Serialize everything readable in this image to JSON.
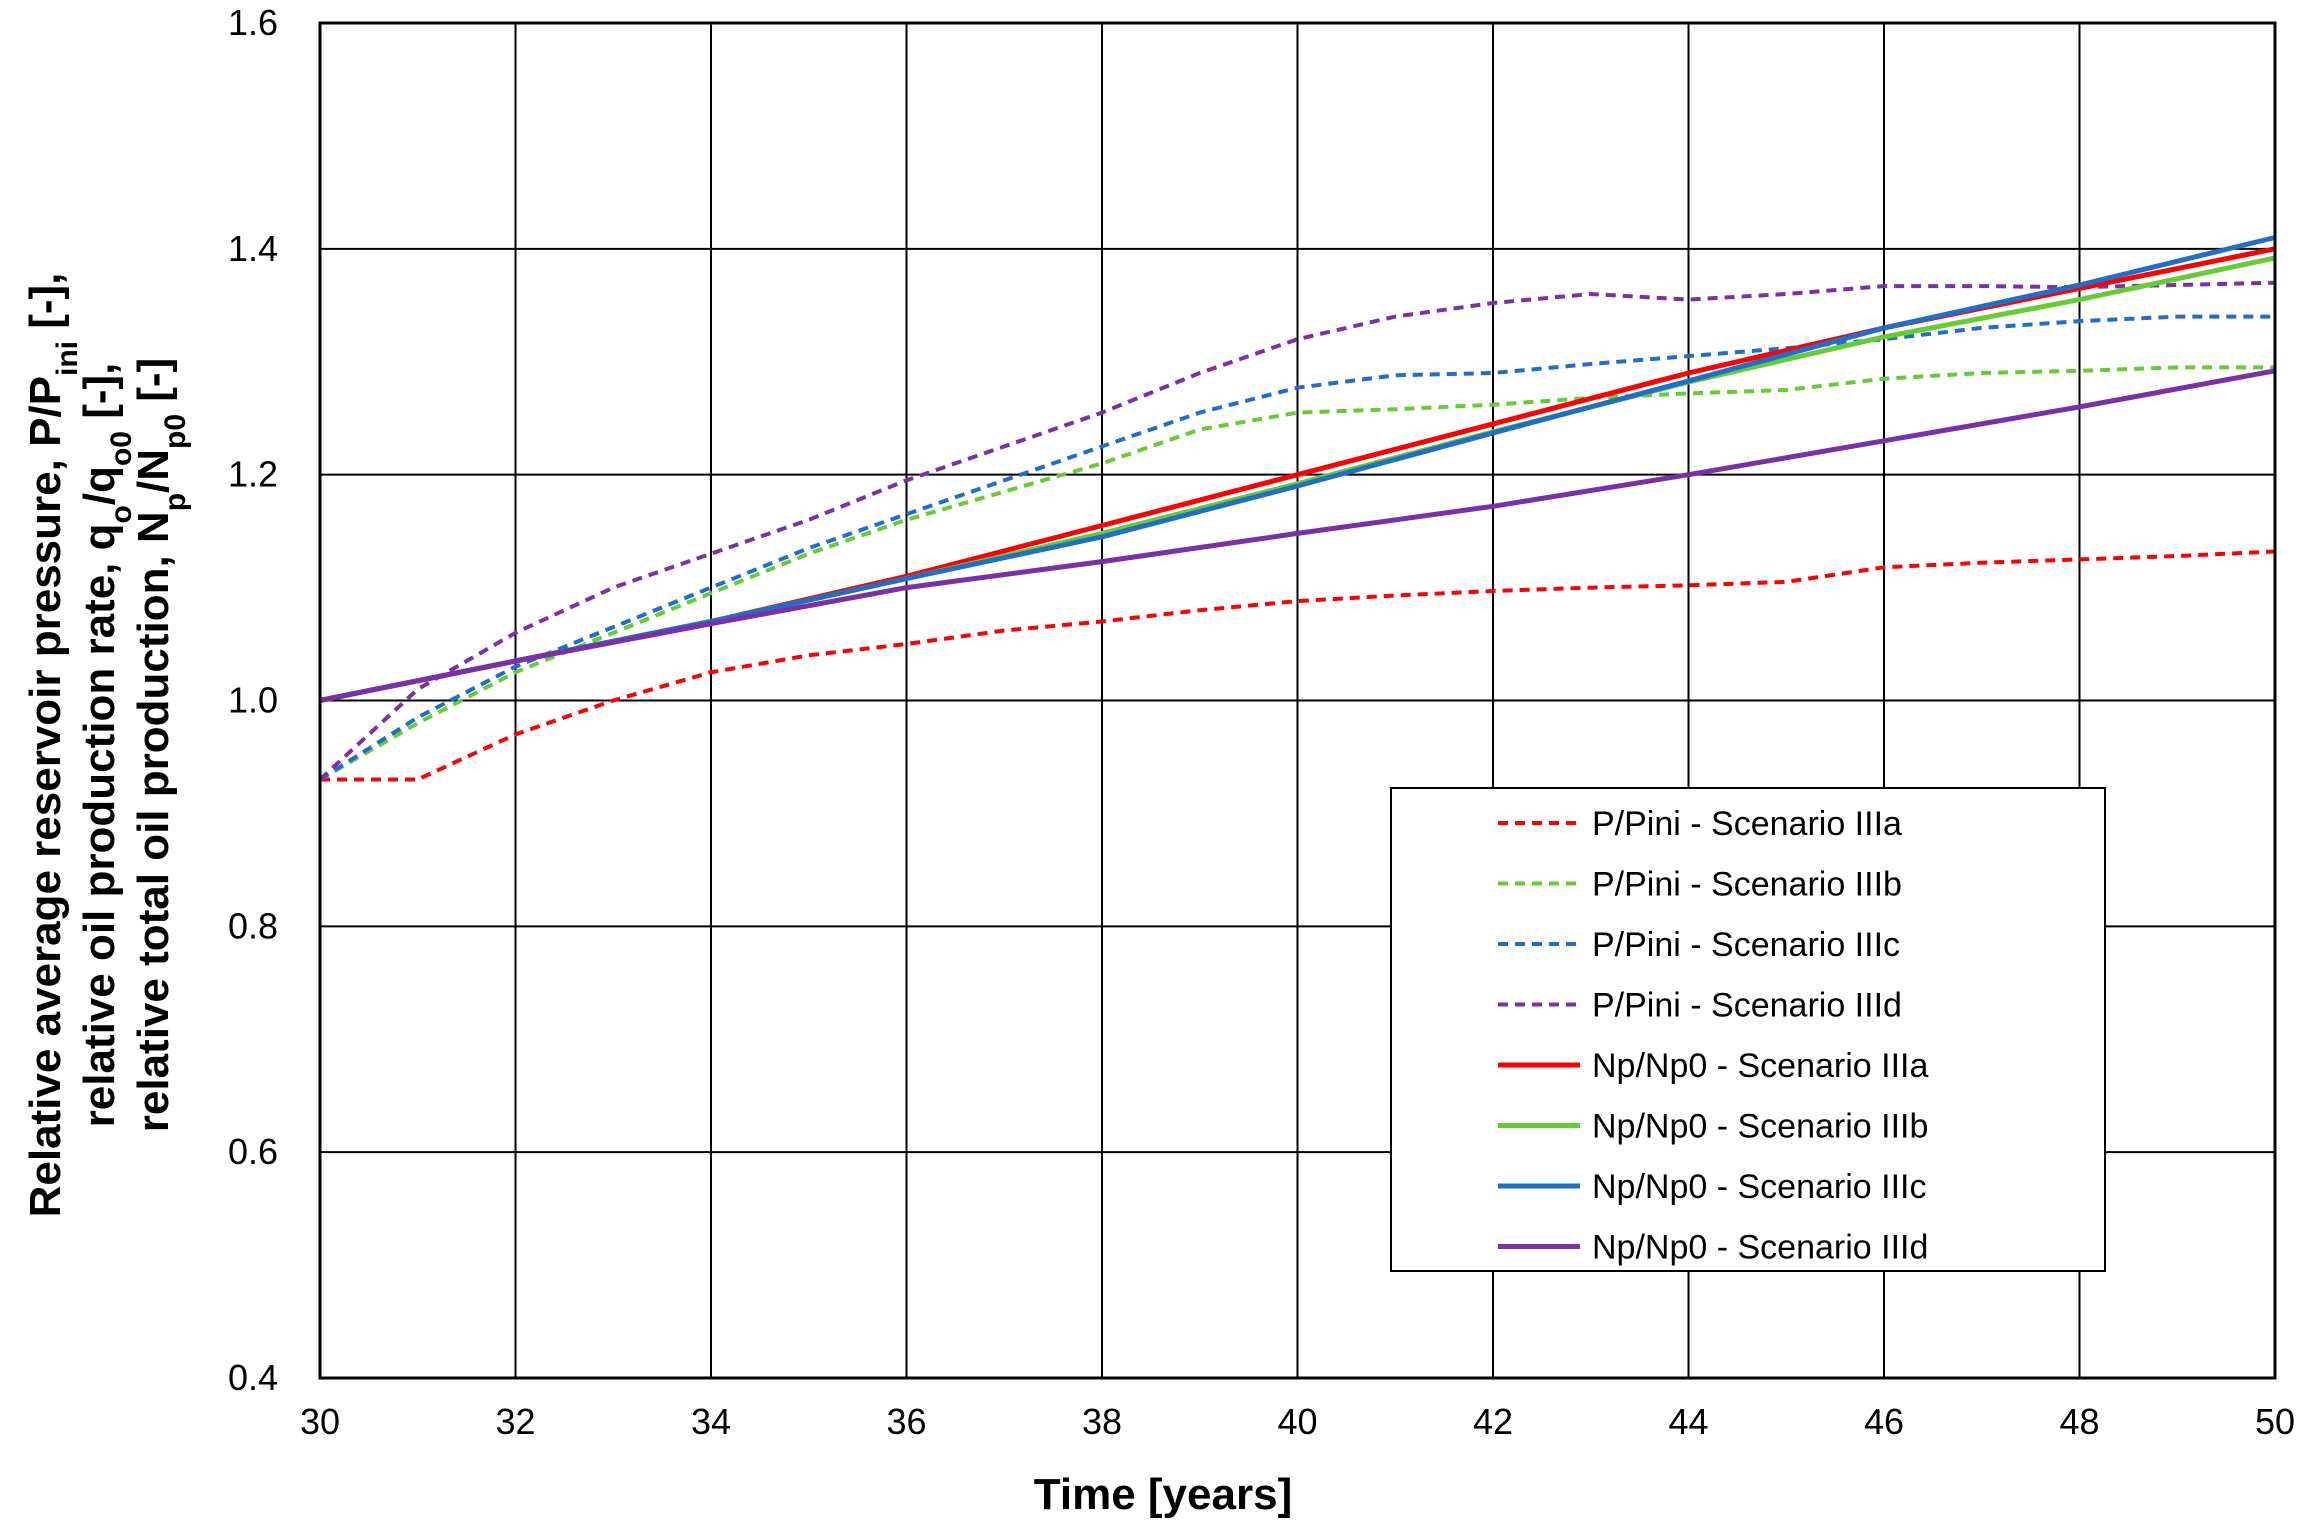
{
  "chart_data": {
    "type": "line",
    "title": "",
    "xlabel": "Time  [years]",
    "ylabel_lines": [
      "Relative average reservoir pressure, P/P_ini [-],",
      "relative oil production rate, q_o/q_o0 [-],",
      "relative total oil production, N_p/N_p0 [-]"
    ],
    "ylabel_parts": {
      "l1a": "Relative average reservoir pressure, P/P",
      "l1s": "ini",
      "l1b": " [-],",
      "l2a": "relative oil production rate, q",
      "l2s1": "o",
      "l2b": "/q",
      "l2s2": "o0",
      "l2c": " [-],",
      "l3a": "relative total oil production, N",
      "l3s1": "p",
      "l3b": "/N",
      "l3s2": "p0",
      "l3c": " [-]"
    },
    "xlim": [
      30,
      50
    ],
    "ylim": [
      0.4,
      1.6
    ],
    "x_ticks": [
      30,
      32,
      34,
      36,
      38,
      40,
      42,
      44,
      46,
      48,
      50
    ],
    "y_ticks": [
      "0.4",
      "0.6",
      "0.8",
      "1.0",
      "1.2",
      "1.4",
      "1.6"
    ],
    "grid": true,
    "legend_position": "lower-right",
    "series": [
      {
        "name": "P/Pini - Scenario IIIa",
        "color": "#ff0000",
        "dash": true,
        "x": [
          30,
          31,
          32,
          33,
          34,
          35,
          36,
          37,
          38,
          39,
          40,
          41,
          42,
          43,
          44,
          45,
          46,
          47,
          48,
          49,
          50
        ],
        "y": [
          0.93,
          0.93,
          0.97,
          1.0,
          1.025,
          1.04,
          1.05,
          1.062,
          1.07,
          1.08,
          1.088,
          1.093,
          1.097,
          1.1,
          1.102,
          1.105,
          1.118,
          1.122,
          1.125,
          1.128,
          1.132
        ]
      },
      {
        "name": "P/Pini - Scenario IIIb",
        "color": "#66cc33",
        "dash": true,
        "x": [
          30,
          31,
          32,
          33,
          34,
          35,
          36,
          37,
          38,
          39,
          40,
          41,
          42,
          43,
          44,
          45,
          46,
          47,
          48,
          49,
          50
        ],
        "y": [
          0.93,
          0.98,
          1.025,
          1.06,
          1.095,
          1.13,
          1.16,
          1.185,
          1.21,
          1.24,
          1.255,
          1.258,
          1.262,
          1.268,
          1.272,
          1.275,
          1.285,
          1.29,
          1.292,
          1.295,
          1.295
        ]
      },
      {
        "name": "P/Pini - Scenario IIIc",
        "color": "#1f6fc8",
        "dash": true,
        "x": [
          30,
          31,
          32,
          33,
          34,
          35,
          36,
          37,
          38,
          39,
          40,
          41,
          42,
          43,
          44,
          45,
          46,
          47,
          48,
          49,
          50
        ],
        "y": [
          0.93,
          0.985,
          1.03,
          1.065,
          1.1,
          1.135,
          1.165,
          1.195,
          1.225,
          1.255,
          1.277,
          1.288,
          1.29,
          1.298,
          1.305,
          1.312,
          1.32,
          1.33,
          1.336,
          1.34,
          1.34
        ]
      },
      {
        "name": "P/Pini - Scenario IIId",
        "color": "#7b2fa8",
        "dash": true,
        "x": [
          30,
          31,
          32,
          33,
          34,
          35,
          36,
          37,
          38,
          39,
          40,
          41,
          42,
          43,
          44,
          45,
          46,
          47,
          48,
          49,
          50
        ],
        "y": [
          0.93,
          1.01,
          1.06,
          1.1,
          1.13,
          1.16,
          1.195,
          1.225,
          1.255,
          1.29,
          1.32,
          1.34,
          1.352,
          1.36,
          1.355,
          1.36,
          1.367,
          1.367,
          1.366,
          1.368,
          1.37
        ]
      },
      {
        "name": "Np/Np0 - Scenario IIIa",
        "color": "#ff0000",
        "dash": false,
        "x": [
          30,
          32,
          34,
          36,
          38,
          40,
          42,
          44,
          46,
          48,
          50
        ],
        "y": [
          1.0,
          1.035,
          1.07,
          1.11,
          1.155,
          1.2,
          1.245,
          1.29,
          1.33,
          1.365,
          1.4
        ]
      },
      {
        "name": "Np/Np0 - Scenario IIIb",
        "color": "#66cc33",
        "dash": false,
        "x": [
          30,
          32,
          34,
          36,
          38,
          40,
          42,
          44,
          46,
          48,
          50
        ],
        "y": [
          1.0,
          1.035,
          1.07,
          1.108,
          1.148,
          1.192,
          1.238,
          1.282,
          1.322,
          1.355,
          1.392
        ]
      },
      {
        "name": "Np/Np0 - Scenario IIIc",
        "color": "#1f6fc8",
        "dash": false,
        "x": [
          30,
          32,
          34,
          36,
          38,
          40,
          42,
          44,
          46,
          48,
          50
        ],
        "y": [
          1.0,
          1.035,
          1.07,
          1.108,
          1.145,
          1.19,
          1.237,
          1.283,
          1.33,
          1.368,
          1.41
        ]
      },
      {
        "name": "Np/Np0 - Scenario IIId",
        "color": "#7b2fa8",
        "dash": false,
        "x": [
          30,
          32,
          34,
          36,
          38,
          40,
          42,
          44,
          46,
          48,
          50
        ],
        "y": [
          1.0,
          1.035,
          1.068,
          1.1,
          1.123,
          1.148,
          1.172,
          1.2,
          1.23,
          1.26,
          1.292
        ]
      }
    ]
  }
}
